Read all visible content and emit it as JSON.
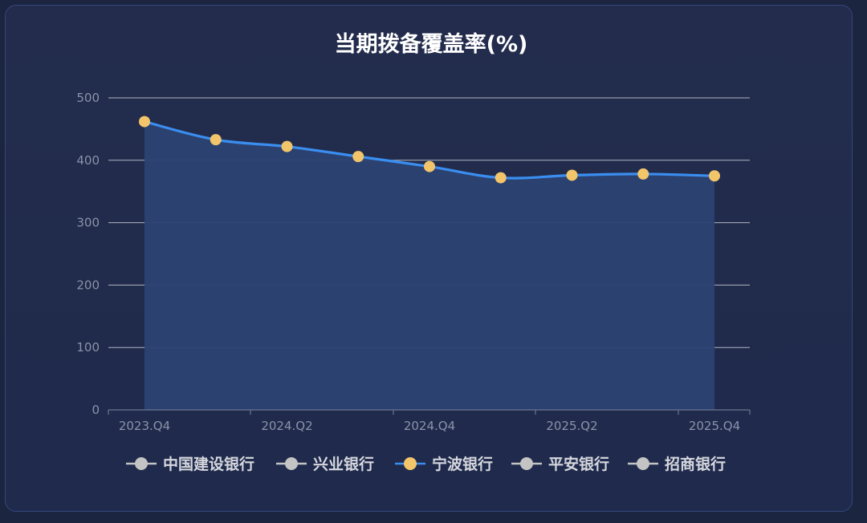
{
  "chart_data": {
    "type": "line",
    "title": "当期拨备覆盖率(%)",
    "x": [
      "2023.Q4",
      "2024.Q1",
      "2024.Q2",
      "2024.Q3",
      "2024.Q4",
      "2025.Q1",
      "2025.Q2",
      "2025.Q3",
      "2025.Q4"
    ],
    "x_tick_labels": [
      "2023.Q4",
      "2024.Q2",
      "2024.Q4",
      "2025.Q2",
      "2025.Q4"
    ],
    "ylim": [
      0,
      500
    ],
    "y_ticks": [
      0,
      100,
      200,
      300,
      400,
      500
    ],
    "grid": true,
    "legend_position": "bottom",
    "legend": [
      {
        "name": "中国建设银行",
        "active": false
      },
      {
        "name": "兴业银行",
        "active": false
      },
      {
        "name": "宁波银行",
        "active": true
      },
      {
        "name": "平安银行",
        "active": false
      },
      {
        "name": "招商银行",
        "active": false
      }
    ],
    "series": [
      {
        "name": "宁波银行",
        "values": [
          462,
          433,
          422,
          406,
          390,
          372,
          376,
          378,
          375
        ]
      }
    ],
    "colors": {
      "line": "#3a8ef0",
      "marker": "#f3c56b",
      "area": "#2c4272",
      "grid": "#c9ccd6",
      "inactive": "#c4c4c4"
    }
  }
}
